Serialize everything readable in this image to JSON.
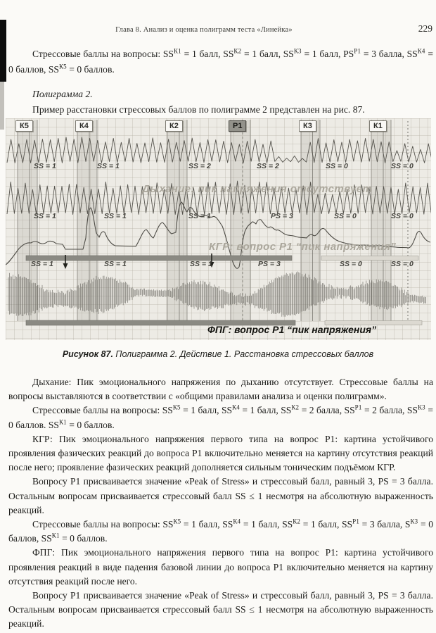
{
  "page": {
    "header": "Глава 8. Анализ и оценка полиграмм теста «Линейка»",
    "page_number": "229"
  },
  "intro": {
    "scores_segments": [
      {
        "t": "Стрессовые баллы на вопросы: SS"
      },
      {
        "sup": "К1"
      },
      {
        "t": " = 1 балл, SS"
      },
      {
        "sup": "К2"
      },
      {
        "t": " = 1 балл, SS"
      },
      {
        "sup": "К3"
      },
      {
        "t": " = 1 балл, PS"
      },
      {
        "sup": "Р1"
      },
      {
        "t": " = 3 балла, SS"
      },
      {
        "sup": "К4"
      },
      {
        "t": " = 0 баллов, SS"
      },
      {
        "sup": "К5"
      },
      {
        "t": " = 0 баллов."
      }
    ],
    "polygram_label": "Полиграмма 2.",
    "example_line": "Пример расстановки стрессовых баллов по полиграмме 2 представлен на рис. 87."
  },
  "figure": {
    "markers": [
      {
        "label": "К5",
        "highlight": false
      },
      {
        "label": "К4",
        "highlight": false
      },
      {
        "label": "К2",
        "highlight": false
      },
      {
        "label": "Р1",
        "highlight": true
      },
      {
        "label": "К3",
        "highlight": false
      },
      {
        "label": "К1",
        "highlight": false
      }
    ],
    "ss_rows": {
      "breathing": [
        "SS = 1",
        "SS = 1",
        "SS = 2",
        "SS = 2",
        "SS = 0",
        "SS = 0"
      ],
      "kgr": [
        "SS = 1",
        "SS = 1",
        "SS = 1",
        "PS = 3",
        "SS = 0",
        "SS = 0"
      ],
      "fpg": [
        "SS = 1",
        "SS = 1",
        "SS = 1",
        "PS = 3",
        "SS = 0",
        "SS = 0"
      ]
    },
    "watermark_breathing": "Дыхание: пик напряжения отсутствует",
    "watermark_kgr": "КГР: вопрос Р1 “пик напряжения”",
    "fpg_label": "ФПГ: вопрос Р1 “пик напряжения”",
    "caption_bold": "Рисунок 87.",
    "caption_rest": "Полиграмма 2. Действие 1. Расстановка стрессовых баллов"
  },
  "body": {
    "breathing": "Дыхание: Пик эмоционального напряжения по дыханию отсутствует. Стрессовые баллы на вопросы выставляются в соответствии с «общими правилами анализа и оценки полиграмм».",
    "scores_breathing_segments": [
      {
        "t": "Стрессовые баллы на вопросы: SS"
      },
      {
        "sup": "К5"
      },
      {
        "t": " = 1 балл, SS"
      },
      {
        "sup": "К4"
      },
      {
        "t": " = 1 балл, SS"
      },
      {
        "sup": "К2"
      },
      {
        "t": " = 2 балла, SS"
      },
      {
        "sup": "Р1"
      },
      {
        "t": " = 2 балла, SS"
      },
      {
        "sup": "К3"
      },
      {
        "t": " = 0 баллов. SS"
      },
      {
        "sup": "К1"
      },
      {
        "t": " = 0 баллов."
      }
    ],
    "kgr": "КГР: Пик эмоционального напряжения первого типа на вопрос Р1: картина устойчивого проявления фазических реакций до вопроса Р1 включительно меняется на картину отсутствия реакций после него; проявление фазических реакций дополняется сильным тоническим подъёмом КГР.",
    "peak_kgr": "Вопросу Р1 присваивается значение «Peak of Stress» и стрессовый балл, равный 3, PS = 3 балла. Остальным вопросам присваивается стрессовый балл SS ≤ 1 несмотря на абсолютную выраженность реакций.",
    "scores_kgr_segments": [
      {
        "t": "Стрессовые баллы на вопросы: SS"
      },
      {
        "sup": "К5"
      },
      {
        "t": " = 1 балл, SS"
      },
      {
        "sup": "К4"
      },
      {
        "t": " = 1 балл, SS"
      },
      {
        "sup": "К2"
      },
      {
        "t": " = 1 балл, SS"
      },
      {
        "sup": "Р1"
      },
      {
        "t": " = 3 балла, S"
      },
      {
        "sup": "К3"
      },
      {
        "t": " = 0 баллов, SS"
      },
      {
        "sup": "К1"
      },
      {
        "t": " = 0 баллов."
      }
    ],
    "fpg": "ФПГ: Пик эмоционального напряжения первого типа на вопрос Р1: картина устойчивого проявления реакций в виде падения базовой линии до вопроса Р1 включительно меняется на картину отсутствия реакций после него.",
    "peak_fpg": "Вопросу Р1 присваивается значение «Peak of Stress» и стрессовый балл, равный 3, PS = 3 балла. Остальным вопросам присваивается стрессовый балл SS ≤ 1 несмотря на абсолютную выраженность реакций."
  }
}
